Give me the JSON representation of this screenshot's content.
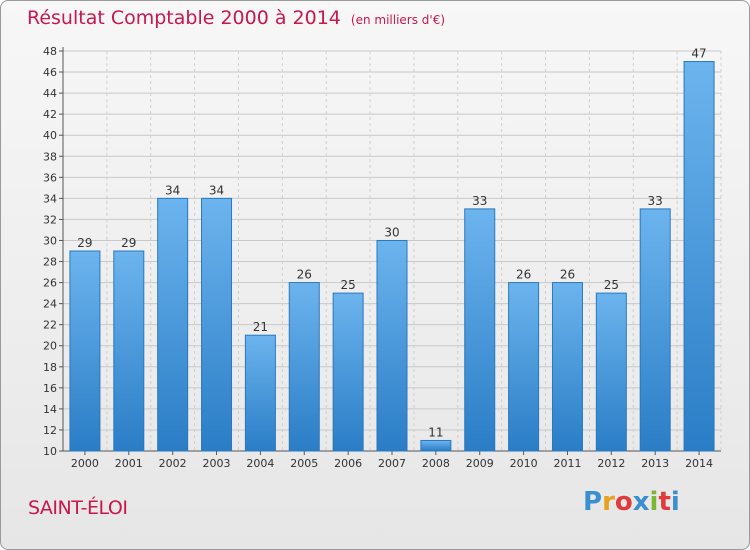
{
  "title": "Résultat Comptable 2000 à 2014",
  "unit": "(en milliers d'€)",
  "commune": "SAINT-ÉLOI",
  "logo": {
    "text": "Proxiti",
    "colors": [
      "#3a8fd0",
      "#e8a020",
      "#e03a3a",
      "#3a8fd0",
      "#78b832",
      "#e03a3a",
      "#3a8fd0"
    ]
  },
  "colors": {
    "title": "#c9174d",
    "bar_light": "#6cb4ee",
    "bar_dark": "#2a7dc6"
  },
  "chart_data": {
    "type": "bar",
    "title": "Résultat Comptable 2000 à 2014",
    "ylabel": "",
    "xlabel": "",
    "categories": [
      "2000",
      "2001",
      "2002",
      "2003",
      "2004",
      "2005",
      "2006",
      "2007",
      "2008",
      "2009",
      "2010",
      "2011",
      "2012",
      "2013",
      "2014"
    ],
    "values": [
      29,
      29,
      34,
      34,
      21,
      26,
      25,
      30,
      11,
      33,
      26,
      26,
      25,
      33,
      47
    ],
    "ylim": [
      10,
      48
    ],
    "yticks": [
      10,
      12,
      14,
      16,
      18,
      20,
      22,
      24,
      26,
      28,
      30,
      32,
      34,
      36,
      38,
      40,
      42,
      44,
      46,
      48
    ],
    "grid": true
  }
}
